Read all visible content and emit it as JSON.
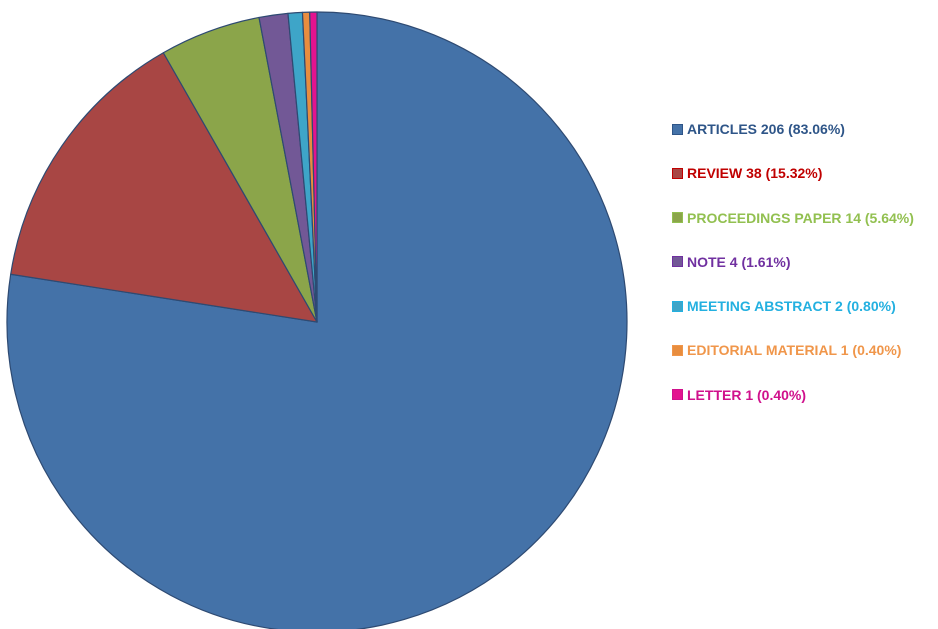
{
  "chart_data": {
    "type": "pie",
    "title": "",
    "legend_position": "right",
    "start_angle_deg": 0,
    "direction": "clockwise",
    "slices": [
      {
        "label": "ARTICLES 206 (83.06%)",
        "category": "ARTICLES",
        "count": 206,
        "percent": 83.06,
        "color": "#4472A8",
        "text_color": "#2E5588"
      },
      {
        "label": "REVIEW 38 (15.32%)",
        "category": "REVIEW",
        "count": 38,
        "percent": 15.32,
        "color": "#A84644",
        "text_color": "#C00000"
      },
      {
        "label": "PROCEEDINGS PAPER 14 (5.64%)",
        "category": "PROCEEDINGS PAPER",
        "count": 14,
        "percent": 5.64,
        "color": "#8BA54A",
        "text_color": "#92C050"
      },
      {
        "label": "NOTE 4 (1.61%)",
        "category": "NOTE",
        "count": 4,
        "percent": 1.61,
        "color": "#725896",
        "text_color": "#7030A0"
      },
      {
        "label": "MEETING ABSTRACT 2 (0.80%)",
        "category": "MEETING ABSTRACT",
        "count": 2,
        "percent": 0.8,
        "color": "#3EA5C8",
        "text_color": "#23B0E0"
      },
      {
        "label": "EDITORIAL MATERIAL 1 (0.40%)",
        "category": "EDITORIAL MATERIAL",
        "count": 1,
        "percent": 0.4,
        "color": "#E88D3E",
        "text_color": "#F0964A"
      },
      {
        "label": "LETTER  1 (0.40%)",
        "category": "LETTER",
        "count": 1,
        "percent": 0.4,
        "color": "#E3138F",
        "text_color": "#D0108C"
      }
    ]
  },
  "colors": {
    "slice_border": "#2E4A72",
    "background": "#ffffff"
  }
}
